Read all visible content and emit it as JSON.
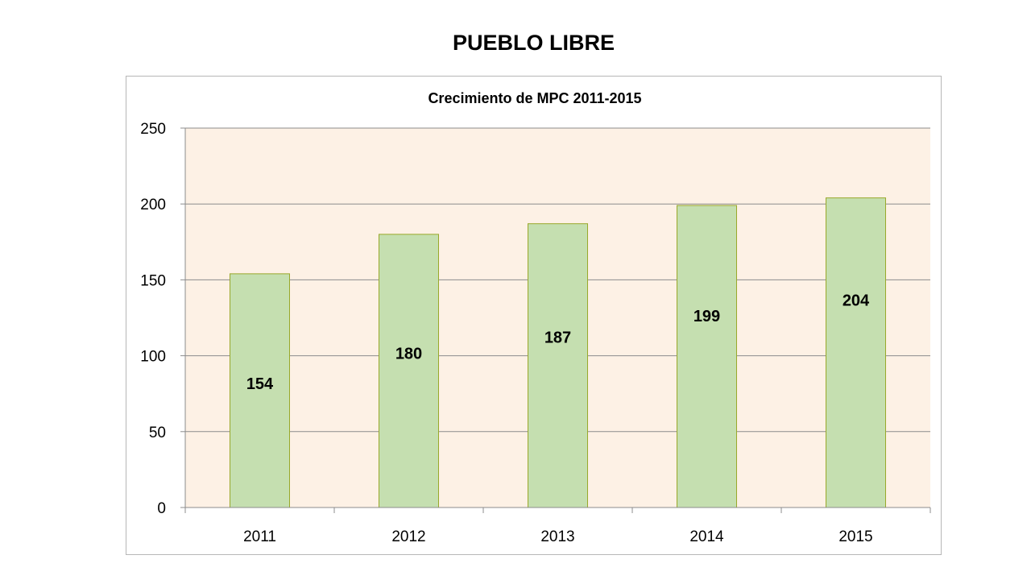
{
  "slide": {
    "title": "PUEBLO LIBRE"
  },
  "chart_data": {
    "type": "bar",
    "title": "Crecimiento de MPC 2011-2015",
    "xlabel": "",
    "ylabel": "",
    "categories": [
      "2011",
      "2012",
      "2013",
      "2014",
      "2015"
    ],
    "values": [
      154,
      180,
      187,
      199,
      204
    ],
    "data_labels": [
      "154",
      "180",
      "187",
      "199",
      "204"
    ],
    "ylim": [
      0,
      250
    ],
    "yticks": [
      0,
      50,
      100,
      150,
      200,
      250
    ],
    "grid": true,
    "legend": "none",
    "colors": {
      "bar_fill": "#c5dfb0",
      "bar_stroke": "#99a82a",
      "plot_bg": "#fdf1e5",
      "grid": "#8c8c8c"
    }
  }
}
